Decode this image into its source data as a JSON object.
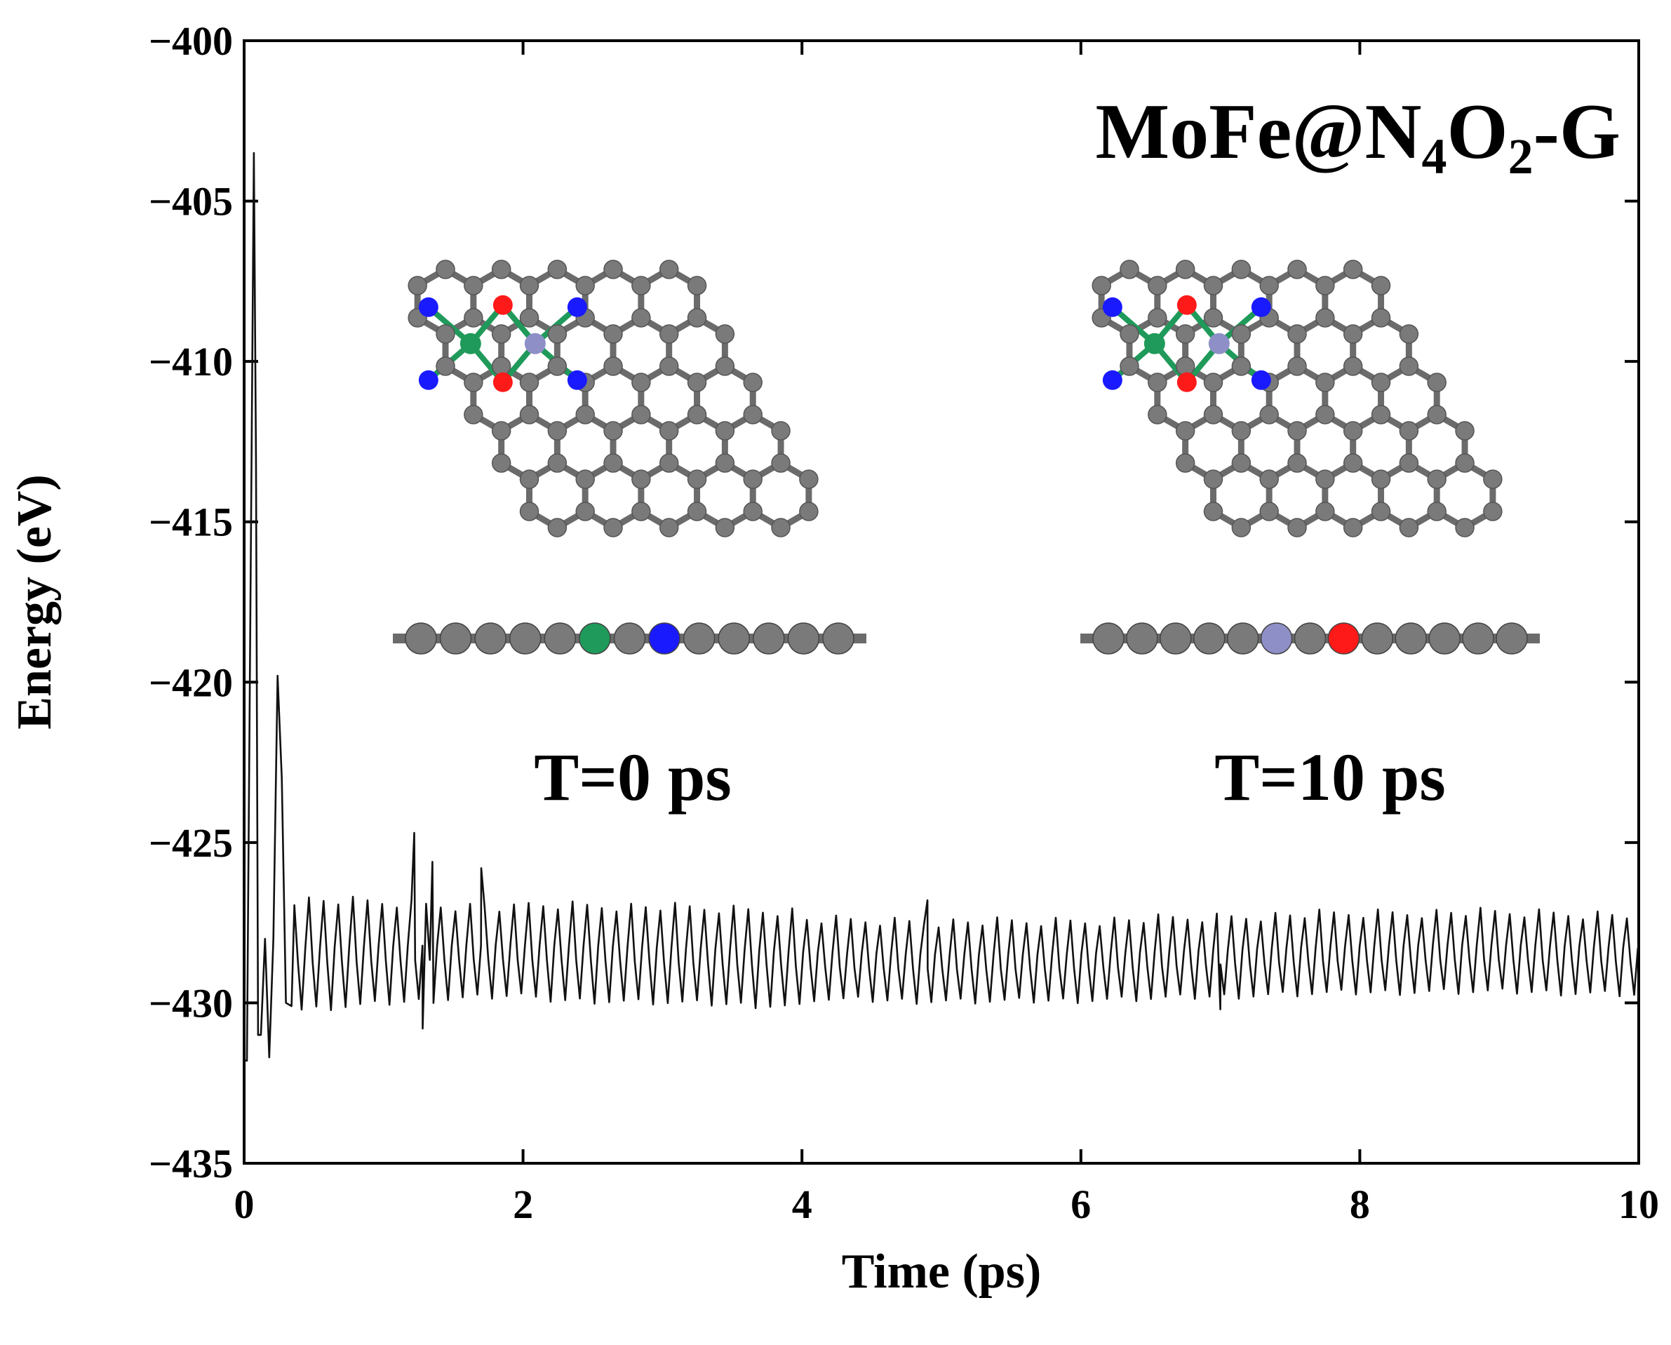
{
  "colors": {
    "line": "#111111",
    "carbon": "#7a7a7a",
    "carbon_bond": "#6b6b6b",
    "nitrogen": "#1a1aff",
    "oxygen": "#ff1a1a",
    "molybdenum": "#1f9a5a",
    "iron": "#8f8fc8"
  },
  "chart_data": {
    "type": "line",
    "annotation_title": "MoFe@N4O2-G",
    "annotation_title_parts": {
      "base": "MoFe@N",
      "sub1": "4",
      "mid": "O",
      "sub2": "2",
      "tail": "-G"
    },
    "xlabel": "Time (ps)",
    "ylabel": "Energy (eV)",
    "xlim": [
      0,
      10
    ],
    "ylim": [
      -435,
      -400
    ],
    "x_ticks": [
      "0",
      "2",
      "4",
      "6",
      "8",
      "10"
    ],
    "y_ticks": [
      "−400",
      "−405",
      "−410",
      "−415",
      "−420",
      "−425",
      "−430",
      "−435"
    ],
    "insets": [
      {
        "label": "T=0 ps",
        "time": 0
      },
      {
        "label": "T=10 ps",
        "time": 10
      }
    ],
    "series": [
      {
        "x": [
          0,
          0.02,
          0.05,
          0.07,
          0.085,
          0.1,
          0.12,
          0.15,
          0.18,
          0.21,
          0.24,
          0.27,
          0.3,
          0.34,
          0.38,
          0.42,
          0.46,
          0.5,
          0.55,
          0.6,
          0.65,
          0.7,
          0.8,
          0.9,
          1.0,
          1.1,
          1.2,
          1.3,
          1.4,
          1.5,
          1.6,
          1.7,
          1.8,
          2.0,
          2.5,
          3.0,
          3.5,
          4.0,
          4.5,
          5.0,
          5.5,
          6.0,
          6.5,
          7.0,
          7.5,
          8.0,
          8.5,
          9.0,
          9.5,
          10.0
        ],
        "y": [
          -431.8,
          -431.8,
          -415.0,
          -403.5,
          -413.0,
          -431.0,
          -431.0,
          -428.0,
          -431.7,
          -428.0,
          -419.8,
          -423.0,
          -430.0,
          -430.1,
          -427.5,
          -425.8,
          -429.8,
          -425.6,
          -426.5,
          -430.0,
          -426.0,
          -430.0,
          -427.0,
          -430.3,
          -426.5,
          -430.6,
          -424.7,
          -430.2,
          -425.8,
          -430.0,
          -426.0,
          -425.8,
          -429.8,
          -426.8,
          -430.0,
          -426.8,
          -429.7,
          -427.2,
          -429.6,
          -427.5,
          -429.5,
          -428.0,
          -429.6,
          -427.6,
          -429.7,
          -427.5,
          -429.8,
          -427.5,
          -429.8,
          -429.4
        ]
      }
    ]
  }
}
